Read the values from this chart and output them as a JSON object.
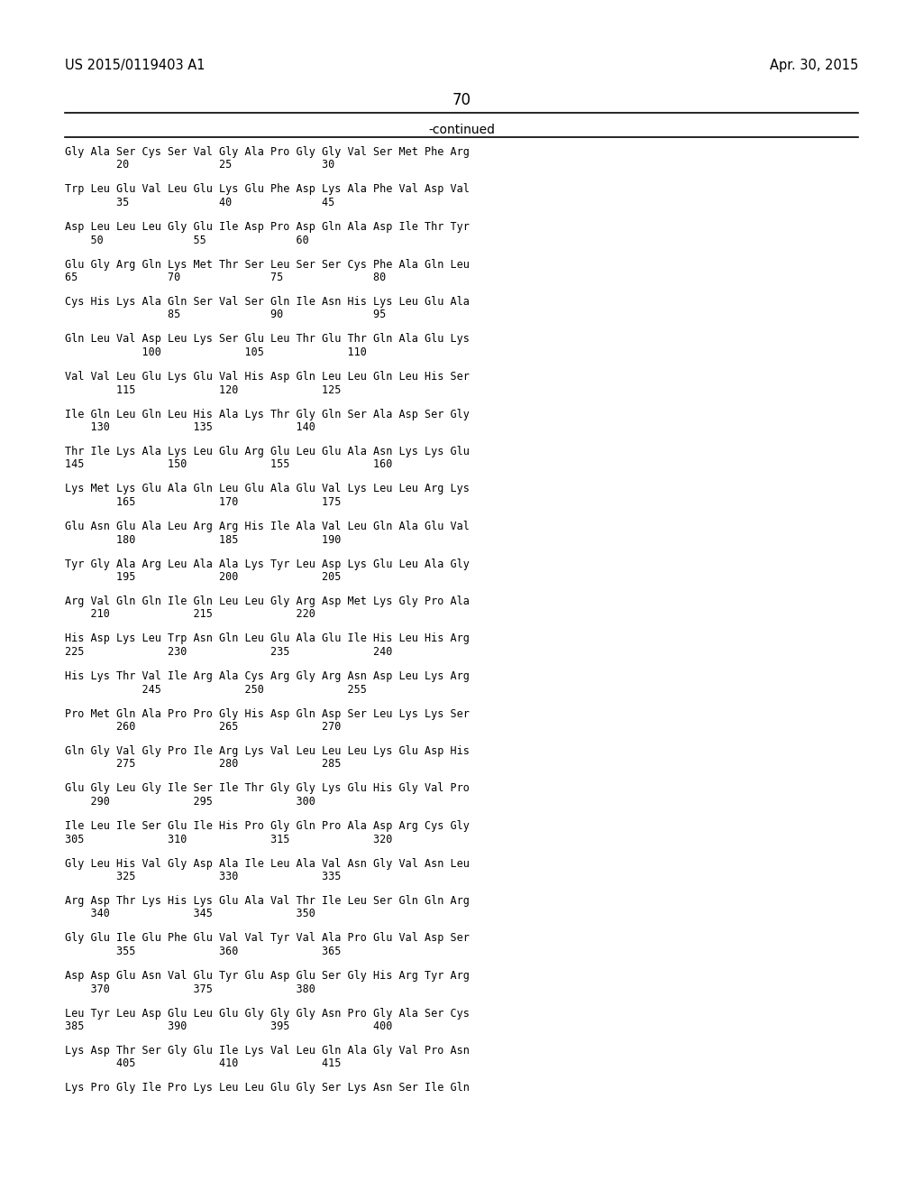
{
  "background_color": "#ffffff",
  "header_left": "US 2015/0119403 A1",
  "header_right": "Apr. 30, 2015",
  "page_number": "70",
  "continued_label": "-continued",
  "sequence_groups": [
    {
      "aa": "Gly Ala Ser Cys Ser Val Gly Ala Pro Gly Gly Val Ser Met Phe Arg",
      "num": "        20              25              30"
    },
    {
      "aa": "Trp Leu Glu Val Leu Glu Lys Glu Phe Asp Lys Ala Phe Val Asp Val",
      "num": "        35              40              45"
    },
    {
      "aa": "Asp Leu Leu Leu Gly Glu Ile Asp Pro Asp Gln Ala Asp Ile Thr Tyr",
      "num": "    50              55              60"
    },
    {
      "aa": "Glu Gly Arg Gln Lys Met Thr Ser Leu Ser Ser Cys Phe Ala Gln Leu",
      "num": "65              70              75              80"
    },
    {
      "aa": "Cys His Lys Ala Gln Ser Val Ser Gln Ile Asn His Lys Leu Glu Ala",
      "num": "                85              90              95"
    },
    {
      "aa": "Gln Leu Val Asp Leu Lys Ser Glu Leu Thr Glu Thr Gln Ala Glu Lys",
      "num": "            100             105             110"
    },
    {
      "aa": "Val Val Leu Glu Lys Glu Val His Asp Gln Leu Leu Gln Leu His Ser",
      "num": "        115             120             125"
    },
    {
      "aa": "Ile Gln Leu Gln Leu His Ala Lys Thr Gly Gln Ser Ala Asp Ser Gly",
      "num": "    130             135             140"
    },
    {
      "aa": "Thr Ile Lys Ala Lys Leu Glu Arg Glu Leu Glu Ala Asn Lys Lys Glu",
      "num": "145             150             155             160"
    },
    {
      "aa": "Lys Met Lys Glu Ala Gln Leu Glu Ala Glu Val Lys Leu Leu Arg Lys",
      "num": "        165             170             175"
    },
    {
      "aa": "Glu Asn Glu Ala Leu Arg Arg His Ile Ala Val Leu Gln Ala Glu Val",
      "num": "        180             185             190"
    },
    {
      "aa": "Tyr Gly Ala Arg Leu Ala Ala Lys Tyr Leu Asp Lys Glu Leu Ala Gly",
      "num": "        195             200             205"
    },
    {
      "aa": "Arg Val Gln Gln Ile Gln Leu Leu Gly Arg Asp Met Lys Gly Pro Ala",
      "num": "    210             215             220"
    },
    {
      "aa": "His Asp Lys Leu Trp Asn Gln Leu Glu Ala Glu Ile His Leu His Arg",
      "num": "225             230             235             240"
    },
    {
      "aa": "His Lys Thr Val Ile Arg Ala Cys Arg Gly Arg Asn Asp Leu Lys Arg",
      "num": "            245             250             255"
    },
    {
      "aa": "Pro Met Gln Ala Pro Pro Gly His Asp Gln Asp Ser Leu Lys Lys Ser",
      "num": "        260             265             270"
    },
    {
      "aa": "Gln Gly Val Gly Pro Ile Arg Lys Val Leu Leu Leu Lys Glu Asp His",
      "num": "        275             280             285"
    },
    {
      "aa": "Glu Gly Leu Gly Ile Ser Ile Thr Gly Gly Lys Glu His Gly Val Pro",
      "num": "    290             295             300"
    },
    {
      "aa": "Ile Leu Ile Ser Glu Ile His Pro Gly Gln Pro Ala Asp Arg Cys Gly",
      "num": "305             310             315             320"
    },
    {
      "aa": "Gly Leu His Val Gly Asp Ala Ile Leu Ala Val Asn Gly Val Asn Leu",
      "num": "        325             330             335"
    },
    {
      "aa": "Arg Asp Thr Lys His Lys Glu Ala Val Thr Ile Leu Ser Gln Gln Arg",
      "num": "    340             345             350"
    },
    {
      "aa": "Gly Glu Ile Glu Phe Glu Val Val Tyr Val Ala Pro Glu Val Asp Ser",
      "num": "        355             360             365"
    },
    {
      "aa": "Asp Asp Glu Asn Val Glu Tyr Glu Asp Glu Ser Gly His Arg Tyr Arg",
      "num": "    370             375             380"
    },
    {
      "aa": "Leu Tyr Leu Asp Glu Leu Glu Gly Gly Gly Asn Pro Gly Ala Ser Cys",
      "num": "385             390             395             400"
    },
    {
      "aa": "Lys Asp Thr Ser Gly Glu Ile Lys Val Leu Gln Ala Gly Val Pro Asn",
      "num": "        405             410             415"
    },
    {
      "aa": "Lys Pro Gly Ile Pro Lys Leu Leu Glu Gly Ser Lys Asn Ser Ile Gln",
      "num": ""
    }
  ]
}
